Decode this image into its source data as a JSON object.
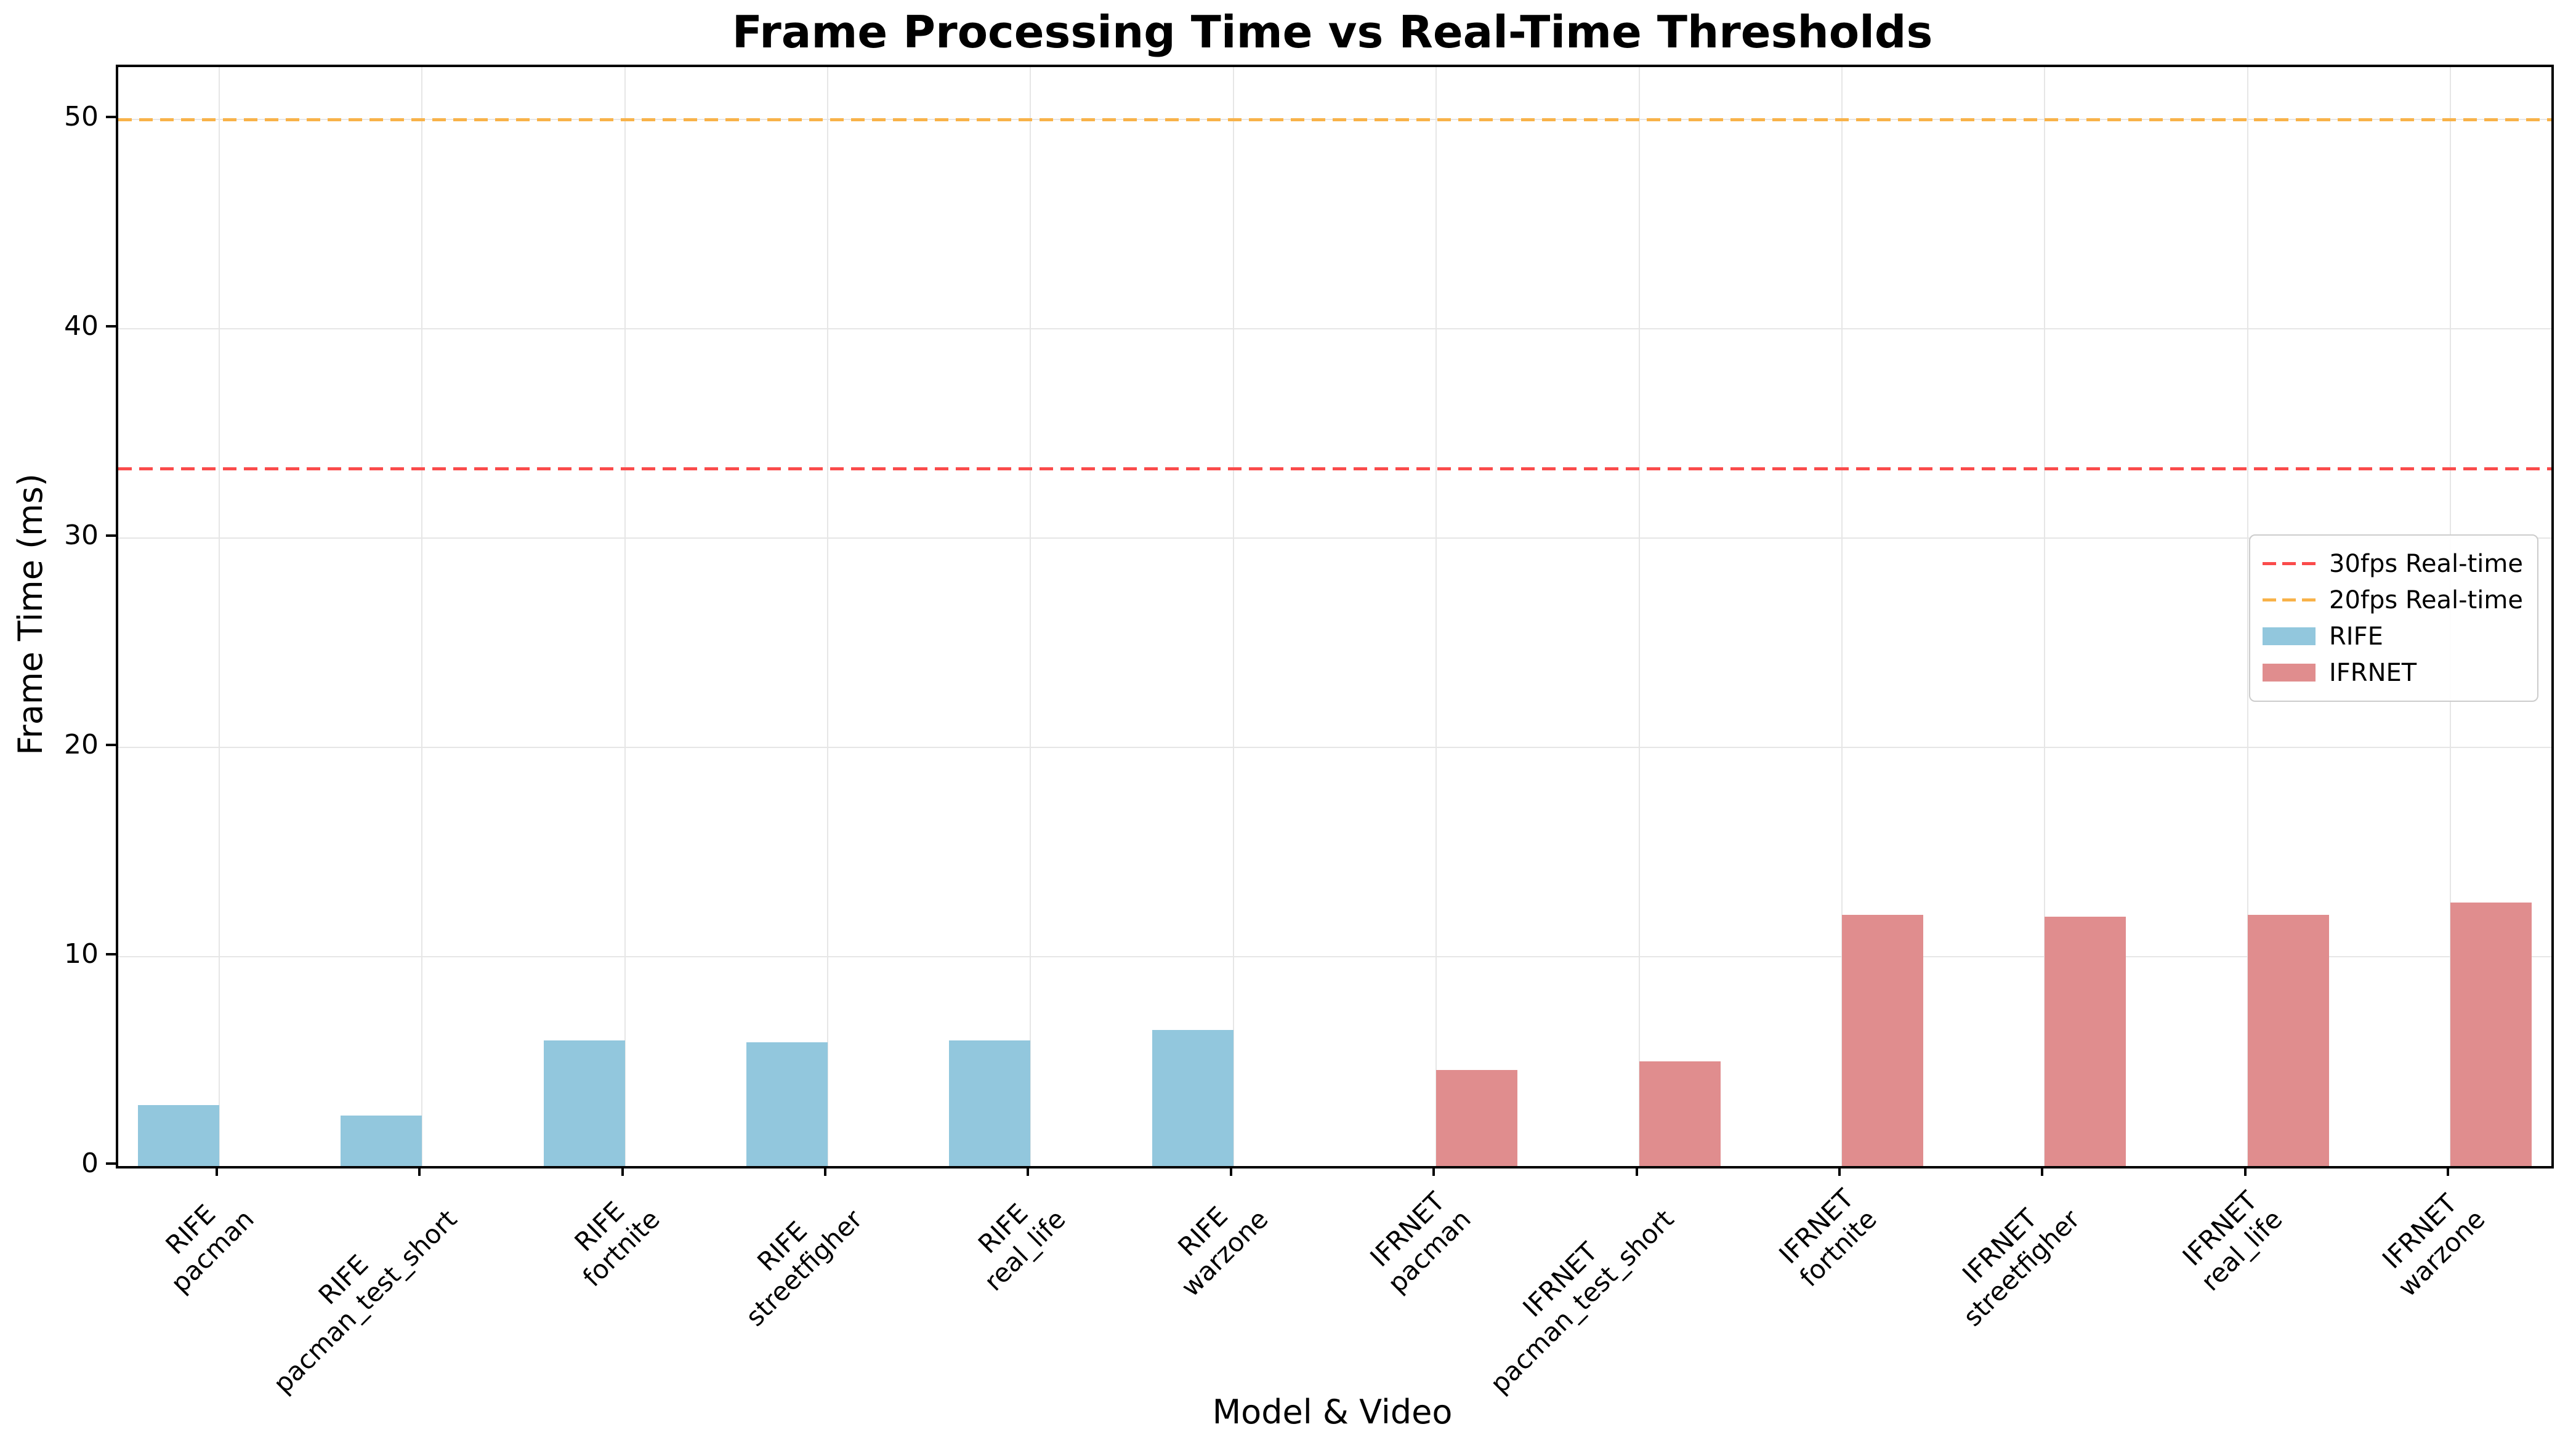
{
  "chart_data": {
    "type": "bar",
    "title": "Frame Processing Time vs Real-Time Thresholds",
    "xlabel": "Model & Video",
    "ylabel": "Frame Time (ms)",
    "ylim": [
      0,
      52.5
    ],
    "yticks": [
      0,
      10,
      20,
      30,
      40,
      50
    ],
    "grid": true,
    "legend_position": "center right",
    "series": [
      {
        "name": "RIFE",
        "color": "#92C7DD",
        "offset": "left"
      },
      {
        "name": "IFRNET",
        "color": "#E08D8E",
        "offset": "right"
      }
    ],
    "bars": [
      {
        "series": "RIFE",
        "label_line1": "RIFE",
        "label_line2": "pacman",
        "value": 2.9
      },
      {
        "series": "RIFE",
        "label_line1": "RIFE",
        "label_line2": "pacman_test_short",
        "value": 2.4
      },
      {
        "series": "RIFE",
        "label_line1": "RIFE",
        "label_line2": "fortnite",
        "value": 6.0
      },
      {
        "series": "RIFE",
        "label_line1": "RIFE",
        "label_line2": "streetfigher",
        "value": 5.9
      },
      {
        "series": "RIFE",
        "label_line1": "RIFE",
        "label_line2": "real_life",
        "value": 6.0
      },
      {
        "series": "RIFE",
        "label_line1": "RIFE",
        "label_line2": "warzone",
        "value": 6.5
      },
      {
        "series": "IFRNET",
        "label_line1": "IFRNET",
        "label_line2": "pacman",
        "value": 4.6
      },
      {
        "series": "IFRNET",
        "label_line1": "IFRNET",
        "label_line2": "pacman_test_short",
        "value": 5.0
      },
      {
        "series": "IFRNET",
        "label_line1": "IFRNET",
        "label_line2": "fortnite",
        "value": 12.0
      },
      {
        "series": "IFRNET",
        "label_line1": "IFRNET",
        "label_line2": "streetfigher",
        "value": 11.9
      },
      {
        "series": "IFRNET",
        "label_line1": "IFRNET",
        "label_line2": "real_life",
        "value": 12.0
      },
      {
        "series": "IFRNET",
        "label_line1": "IFRNET",
        "label_line2": "warzone",
        "value": 12.6
      }
    ],
    "thresholds": [
      {
        "label": "30fps Real-time",
        "value": 33.333,
        "color": "#FA4B4B"
      },
      {
        "label": "20fps Real-time",
        "value": 50,
        "color": "#F8B249"
      }
    ],
    "legend": [
      {
        "type": "line",
        "label": "30fps Real-time",
        "color": "#FA4B4B"
      },
      {
        "type": "line",
        "label": "20fps Real-time",
        "color": "#F8B249"
      },
      {
        "type": "patch",
        "label": "RIFE",
        "color": "#92C7DD"
      },
      {
        "type": "patch",
        "label": "IFRNET",
        "color": "#E08D8E"
      }
    ],
    "colors": {
      "grid": "#E6E6E6",
      "spine": "#000000",
      "background": "#FFFFFF"
    }
  }
}
